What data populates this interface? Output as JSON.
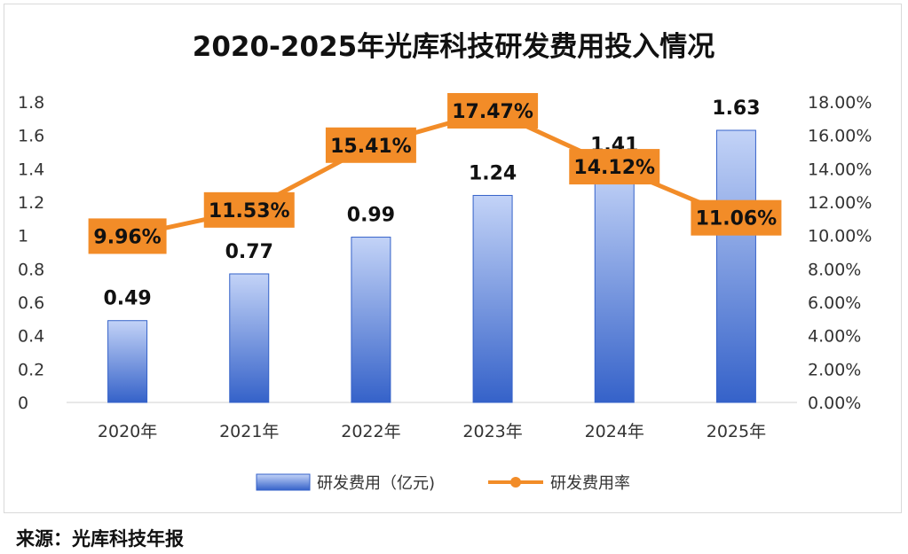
{
  "source_note": "来源：光库科技年报",
  "colors": {
    "bar_light": "#c3d3f7",
    "bar_dark": "#3562c9",
    "line": "#f28c28",
    "label_box": "#f28c28",
    "text": "#111111",
    "axis_text": "#333333"
  },
  "chart_data": {
    "type": "bar",
    "title": "2020-2025年光库科技研发费用投入情况",
    "categories": [
      "2020年",
      "2021年",
      "2022年",
      "2023年",
      "2024年",
      "2025年"
    ],
    "series": [
      {
        "name": "研发费用（亿元)",
        "type": "bar",
        "axis": "left",
        "values": [
          0.49,
          0.77,
          0.99,
          1.24,
          1.41,
          1.63
        ],
        "labels": [
          "0.49",
          "0.77",
          "0.99",
          "1.24",
          "1.41",
          "1.63"
        ]
      },
      {
        "name": "研发费用率",
        "type": "line",
        "axis": "right",
        "values": [
          9.96,
          11.53,
          15.41,
          17.47,
          14.12,
          11.06
        ],
        "labels": [
          "9.96%",
          "11.53%",
          "15.41%",
          "17.47%",
          "14.12%",
          "11.06%"
        ]
      }
    ],
    "y_left": {
      "range": [
        0,
        1.8
      ],
      "ticks": [
        "0",
        "0.2",
        "0.4",
        "0.6",
        "0.8",
        "1",
        "1.2",
        "1.4",
        "1.6",
        "1.8"
      ]
    },
    "y_right": {
      "range": [
        0,
        18
      ],
      "ticks": [
        "0.00%",
        "2.00%",
        "4.00%",
        "6.00%",
        "8.00%",
        "10.00%",
        "12.00%",
        "14.00%",
        "16.00%",
        "18.00%"
      ]
    },
    "grid": false,
    "legend_position": "bottom"
  }
}
